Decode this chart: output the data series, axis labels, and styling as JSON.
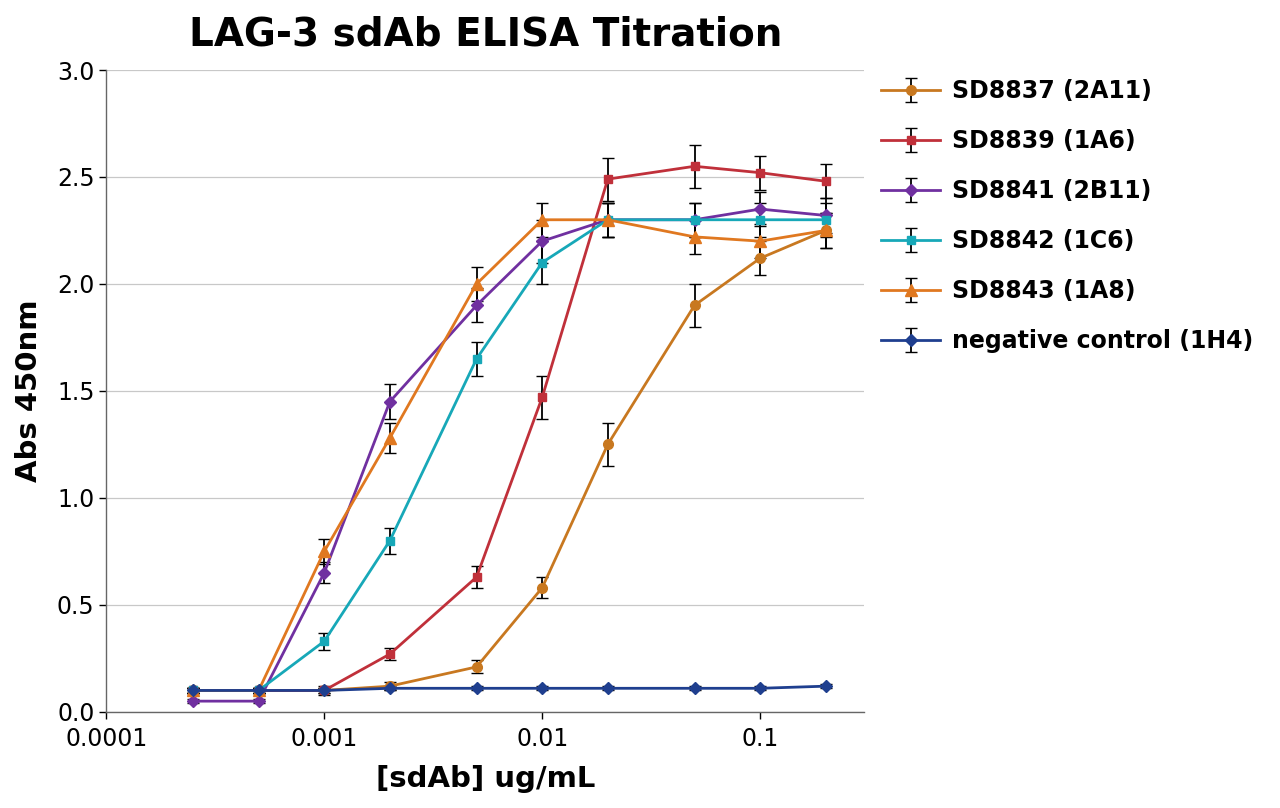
{
  "title": "LAG-3 sdAb ELISA Titration",
  "xlabel": "[sdAb] ug/mL",
  "ylabel": "Abs 450nm",
  "ylim": [
    0,
    3.0
  ],
  "xlim": [
    0.00015,
    0.3
  ],
  "background_color": "#ffffff",
  "series": [
    {
      "label": "SD8837 (2A11)",
      "color": "#c87820",
      "marker": "o",
      "markersize": 7,
      "linewidth": 2.0,
      "x": [
        0.00025,
        0.0005,
        0.001,
        0.002,
        0.005,
        0.01,
        0.02,
        0.05,
        0.1,
        0.2
      ],
      "y": [
        0.1,
        0.1,
        0.1,
        0.12,
        0.21,
        0.58,
        1.25,
        1.9,
        2.12,
        2.25
      ],
      "yerr": [
        0.01,
        0.01,
        0.01,
        0.02,
        0.03,
        0.05,
        0.1,
        0.1,
        0.08,
        0.08
      ]
    },
    {
      "label": "SD8839 (1A6)",
      "color": "#c0303a",
      "marker": "s",
      "markersize": 6,
      "linewidth": 2.0,
      "x": [
        0.00025,
        0.0005,
        0.001,
        0.002,
        0.005,
        0.01,
        0.02,
        0.05,
        0.1,
        0.2
      ],
      "y": [
        0.1,
        0.1,
        0.1,
        0.27,
        0.63,
        1.47,
        2.49,
        2.55,
        2.52,
        2.48
      ],
      "yerr": [
        0.01,
        0.01,
        0.02,
        0.03,
        0.05,
        0.1,
        0.1,
        0.1,
        0.08,
        0.08
      ]
    },
    {
      "label": "SD8841 (2B11)",
      "color": "#7030a0",
      "marker": "D",
      "markersize": 6,
      "linewidth": 2.0,
      "x": [
        0.00025,
        0.0005,
        0.001,
        0.002,
        0.005,
        0.01,
        0.02,
        0.05,
        0.1,
        0.2
      ],
      "y": [
        0.05,
        0.05,
        0.65,
        1.45,
        1.9,
        2.2,
        2.3,
        2.3,
        2.35,
        2.32
      ],
      "yerr": [
        0.01,
        0.01,
        0.05,
        0.08,
        0.08,
        0.1,
        0.08,
        0.08,
        0.08,
        0.08
      ]
    },
    {
      "label": "SD8842 (1C6)",
      "color": "#17a8b8",
      "marker": "s",
      "markersize": 6,
      "linewidth": 2.0,
      "x": [
        0.00025,
        0.0005,
        0.001,
        0.002,
        0.005,
        0.01,
        0.02,
        0.05,
        0.1,
        0.2
      ],
      "y": [
        0.1,
        0.1,
        0.33,
        0.8,
        1.65,
        2.1,
        2.3,
        2.3,
        2.3,
        2.3
      ],
      "yerr": [
        0.01,
        0.01,
        0.04,
        0.06,
        0.08,
        0.1,
        0.08,
        0.08,
        0.08,
        0.08
      ]
    },
    {
      "label": "SD8843 (1A8)",
      "color": "#e07820",
      "marker": "^",
      "markersize": 8,
      "linewidth": 2.0,
      "x": [
        0.00025,
        0.0005,
        0.001,
        0.002,
        0.005,
        0.01,
        0.02,
        0.05,
        0.1,
        0.2
      ],
      "y": [
        0.1,
        0.1,
        0.75,
        1.28,
        2.0,
        2.3,
        2.3,
        2.22,
        2.2,
        2.25
      ],
      "yerr": [
        0.01,
        0.01,
        0.06,
        0.07,
        0.08,
        0.08,
        0.08,
        0.08,
        0.08,
        0.08
      ]
    },
    {
      "label": "negative control (1H4)",
      "color": "#1f3f8f",
      "marker": "D",
      "markersize": 6,
      "linewidth": 2.0,
      "x": [
        0.00025,
        0.0005,
        0.001,
        0.002,
        0.005,
        0.01,
        0.02,
        0.05,
        0.1,
        0.2
      ],
      "y": [
        0.1,
        0.1,
        0.1,
        0.11,
        0.11,
        0.11,
        0.11,
        0.11,
        0.11,
        0.12
      ],
      "yerr": [
        0.01,
        0.01,
        0.01,
        0.01,
        0.01,
        0.01,
        0.01,
        0.01,
        0.01,
        0.01
      ]
    }
  ],
  "title_fontsize": 28,
  "axis_label_fontsize": 21,
  "tick_fontsize": 17,
  "legend_fontsize": 17,
  "grid_color": "#c8c8c8",
  "yticks": [
    0.0,
    0.5,
    1.0,
    1.5,
    2.0,
    2.5,
    3.0
  ]
}
